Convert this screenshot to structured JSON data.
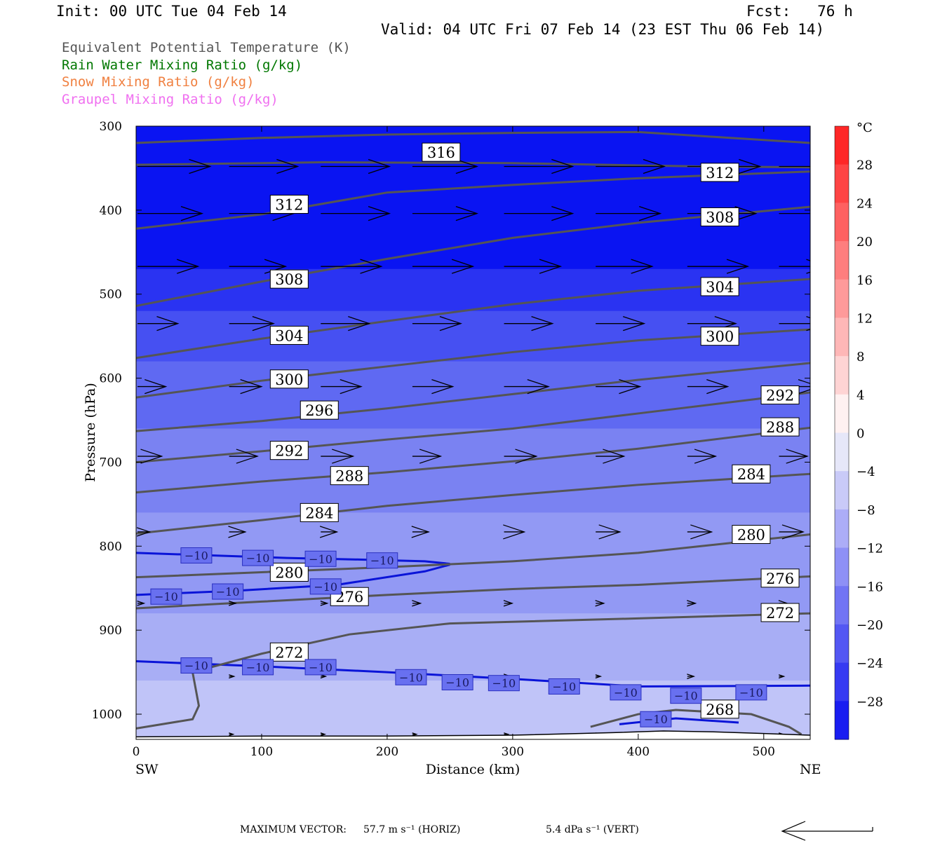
{
  "header": {
    "init": "Init: 00 UTC Tue 04 Feb 14",
    "fcst": "Fcst:   76 h",
    "valid": "Valid: 04 UTC Fri 07 Feb 14 (23 EST Thu 06 Feb 14)"
  },
  "legend": {
    "theta_e": "Equivalent Potential Temperature (K)",
    "rain": "Rain Water Mixing Ratio (g/kg)",
    "snow": "Snow Mixing Ratio (g/kg)",
    "graupel": "Graupel Mixing Ratio (g/kg)"
  },
  "colors": {
    "theta_e": "#555555",
    "rain": "#007700",
    "snow": "#f08040",
    "graupel": "#f070f0",
    "isotherm": "#0a14d8"
  },
  "chart_data": {
    "type": "cross-section",
    "xlabel": "Distance (km)",
    "ylabel": "Pressure (hPa)",
    "x_left_label": "SW",
    "x_right_label": "NE",
    "xlim": [
      0,
      537
    ],
    "ylim": [
      1030,
      300
    ],
    "x_ticks": [
      0,
      100,
      200,
      300,
      400,
      500
    ],
    "y_ticks": [
      300,
      400,
      500,
      600,
      700,
      800,
      900,
      1000
    ],
    "colorbar": {
      "unit": "°C",
      "ticks": [
        "28",
        "24",
        "20",
        "16",
        "12",
        "8",
        "4",
        "0",
        "−4",
        "−8",
        "−12",
        "−16",
        "−20",
        "−24",
        "−28"
      ],
      "range": [
        -32,
        32
      ],
      "step": 4
    },
    "shading_field": "Temperature (°C)",
    "theta_e_contours": [
      {
        "value": 316,
        "points": [
          [
            0,
            320
          ],
          [
            100,
            314
          ],
          [
            200,
            310
          ],
          [
            300,
            308
          ],
          [
            400,
            307
          ],
          [
            537,
            320
          ]
        ],
        "labels": [
          [
            243,
            331
          ]
        ]
      },
      {
        "value": 312,
        "points": [
          [
            0,
            346
          ],
          [
            150,
            343
          ],
          [
            300,
            344
          ],
          [
            450,
            348
          ],
          [
            537,
            349
          ]
        ],
        "labels": [
          [
            465,
            355
          ]
        ]
      },
      {
        "value": 312,
        "points": [
          [
            0,
            422
          ],
          [
            100,
            405
          ],
          [
            200,
            379
          ],
          [
            300,
            370
          ],
          [
            400,
            362
          ],
          [
            537,
            354
          ]
        ],
        "labels": [
          [
            122,
            393
          ]
        ]
      },
      {
        "value": 308,
        "points": [
          [
            0,
            514
          ],
          [
            100,
            485
          ],
          [
            200,
            458
          ],
          [
            300,
            433
          ],
          [
            400,
            415
          ],
          [
            537,
            396
          ]
        ],
        "labels": [
          [
            122,
            482
          ],
          [
            465,
            408
          ]
        ]
      },
      {
        "value": 304,
        "points": [
          [
            0,
            576
          ],
          [
            100,
            553
          ],
          [
            200,
            532
          ],
          [
            300,
            512
          ],
          [
            400,
            496
          ],
          [
            537,
            482
          ]
        ],
        "labels": [
          [
            122,
            549
          ],
          [
            465,
            491
          ]
        ]
      },
      {
        "value": 300,
        "points": [
          [
            0,
            623
          ],
          [
            100,
            603
          ],
          [
            200,
            586
          ],
          [
            300,
            569
          ],
          [
            400,
            555
          ],
          [
            537,
            542
          ]
        ],
        "labels": [
          [
            122,
            601
          ],
          [
            465,
            550
          ]
        ]
      },
      {
        "value": 296,
        "points": [
          [
            0,
            663
          ],
          [
            100,
            651
          ],
          [
            200,
            636
          ],
          [
            300,
            619
          ],
          [
            400,
            602
          ],
          [
            537,
            582
          ]
        ],
        "labels": [
          [
            146,
            638
          ]
        ]
      },
      {
        "value": 292,
        "points": [
          [
            0,
            700
          ],
          [
            100,
            687
          ],
          [
            200,
            673
          ],
          [
            300,
            660
          ],
          [
            400,
            642
          ],
          [
            537,
            617
          ]
        ],
        "labels": [
          [
            122,
            686
          ],
          [
            513,
            620
          ]
        ]
      },
      {
        "value": 288,
        "points": [
          [
            0,
            736
          ],
          [
            100,
            723
          ],
          [
            200,
            712
          ],
          [
            300,
            699
          ],
          [
            400,
            684
          ],
          [
            537,
            659
          ]
        ],
        "labels": [
          [
            170,
            716
          ],
          [
            513,
            658
          ]
        ]
      },
      {
        "value": 284,
        "points": [
          [
            0,
            785
          ],
          [
            100,
            769
          ],
          [
            200,
            752
          ],
          [
            300,
            739
          ],
          [
            400,
            727
          ],
          [
            537,
            714
          ]
        ],
        "labels": [
          [
            146,
            760
          ],
          [
            490,
            714
          ]
        ]
      },
      {
        "value": 280,
        "points": [
          [
            0,
            837
          ],
          [
            100,
            831
          ],
          [
            200,
            825
          ],
          [
            300,
            818
          ],
          [
            400,
            808
          ],
          [
            537,
            786
          ]
        ],
        "labels": [
          [
            122,
            831
          ],
          [
            490,
            786
          ]
        ]
      },
      {
        "value": 276,
        "points": [
          [
            0,
            874
          ],
          [
            100,
            866
          ],
          [
            200,
            858
          ],
          [
            300,
            851
          ],
          [
            400,
            846
          ],
          [
            537,
            836
          ]
        ],
        "labels": [
          [
            170,
            860
          ],
          [
            513,
            838
          ]
        ]
      },
      {
        "value": 272,
        "points": [
          [
            0,
            1017
          ],
          [
            45,
            1006
          ],
          [
            50,
            990
          ],
          [
            45,
            950
          ],
          [
            100,
            928
          ],
          [
            170,
            905
          ],
          [
            250,
            892
          ],
          [
            400,
            886
          ],
          [
            537,
            880
          ]
        ],
        "labels": [
          [
            122,
            926
          ],
          [
            513,
            879
          ]
        ]
      },
      {
        "value": 268,
        "points": [
          [
            362,
            1015
          ],
          [
            400,
            1000
          ],
          [
            430,
            995
          ],
          [
            490,
            1000
          ],
          [
            520,
            1015
          ],
          [
            530,
            1024
          ]
        ],
        "labels": [
          [
            465,
            994
          ]
        ]
      }
    ],
    "isotherms_minus10": [
      {
        "points": [
          [
            0,
            808
          ],
          [
            60,
            811
          ],
          [
            120,
            814
          ],
          [
            180,
            816
          ],
          [
            230,
            818
          ],
          [
            250,
            821
          ]
        ],
        "labels": [
          [
            48,
            811
          ],
          [
            97,
            814
          ],
          [
            147,
            815
          ],
          [
            196,
            817
          ]
        ]
      },
      {
        "points": [
          [
            0,
            858
          ],
          [
            80,
            853
          ],
          [
            160,
            846
          ],
          [
            230,
            830
          ],
          [
            250,
            822
          ]
        ],
        "labels": [
          [
            24,
            860
          ],
          [
            73,
            854
          ],
          [
            151,
            848
          ]
        ]
      },
      {
        "points": [
          [
            0,
            937
          ],
          [
            100,
            943
          ],
          [
            200,
            950
          ],
          [
            300,
            958
          ],
          [
            400,
            967
          ],
          [
            537,
            966
          ]
        ],
        "labels": [
          [
            48,
            942
          ],
          [
            97,
            944
          ],
          [
            147,
            944
          ],
          [
            219,
            956
          ],
          [
            256,
            962
          ],
          [
            293,
            963
          ],
          [
            341,
            967
          ],
          [
            390,
            974
          ],
          [
            438,
            978
          ],
          [
            490,
            974
          ]
        ]
      },
      {
        "points": [
          [
            385,
            1012
          ],
          [
            430,
            1005
          ],
          [
            480,
            1010
          ]
        ],
        "labels": [
          [
            414,
            1006
          ]
        ]
      }
    ],
    "wind_vectors": [
      {
        "p": 348,
        "x": [
          0,
          73,
          146,
          219,
          292,
          365,
          438,
          511
        ],
        "len": [
          0.9,
          0.85,
          0.85,
          0.8,
          0.85,
          0.85,
          0.9,
          0.9
        ]
      },
      {
        "p": 404,
        "x": [
          0,
          73,
          146,
          219,
          292,
          365,
          438,
          511
        ],
        "len": [
          0.8,
          0.8,
          0.85,
          0.8,
          0.85,
          0.8,
          0.85,
          0.8
        ]
      },
      {
        "p": 467,
        "x": [
          0,
          73,
          146,
          219,
          292,
          365,
          438,
          511
        ],
        "len": [
          0.75,
          0.7,
          0.75,
          0.75,
          0.7,
          0.7,
          0.75,
          0.6
        ]
      },
      {
        "p": 535,
        "x": [
          0,
          73,
          146,
          219,
          292,
          365,
          438,
          511
        ],
        "len": [
          0.5,
          0.55,
          0.6,
          0.6,
          0.6,
          0.6,
          0.6,
          0.6
        ]
      },
      {
        "p": 610,
        "x": [
          0,
          73,
          146,
          219,
          292,
          365,
          438,
          511
        ],
        "len": [
          0.35,
          0.4,
          0.5,
          0.5,
          0.55,
          0.55,
          0.5,
          0.5
        ]
      },
      {
        "p": 693,
        "x": [
          0,
          73,
          146,
          219,
          292,
          365,
          438,
          511
        ],
        "len": [
          0.3,
          0.35,
          0.4,
          0.35,
          0.4,
          0.35,
          0.35,
          0.35
        ]
      },
      {
        "p": 783,
        "x": [
          0,
          73,
          146,
          219,
          292,
          365,
          438,
          511
        ],
        "len": [
          0.15,
          0.2,
          0.2,
          0.2,
          0.25,
          0.3,
          0.3,
          0.3
        ]
      },
      {
        "p": 868,
        "x": [
          0,
          73,
          146,
          219,
          292,
          365,
          438,
          511
        ],
        "len": [
          0.08,
          0.08,
          0.08,
          0.1,
          0.1,
          0.1,
          0.1,
          0.1
        ]
      },
      {
        "p": 955,
        "x": [
          73,
          146,
          219,
          292,
          365,
          438,
          511
        ],
        "len": [
          0.06,
          0.06,
          0.06,
          0.08,
          0.06,
          0.08,
          0.06
        ]
      },
      {
        "p": 1024,
        "x": [
          73,
          146,
          219,
          292,
          365,
          438,
          511
        ],
        "len": [
          0.05,
          0.05,
          0.05,
          0.05,
          0.05,
          0.05,
          0.05
        ]
      }
    ]
  },
  "footer": {
    "max_vector_label": "MAXIMUM VECTOR:",
    "horiz_value": "57.7 m s⁻¹ (HORIZ)",
    "vert_value": "5.4 dPa s⁻¹ (VERT)"
  }
}
